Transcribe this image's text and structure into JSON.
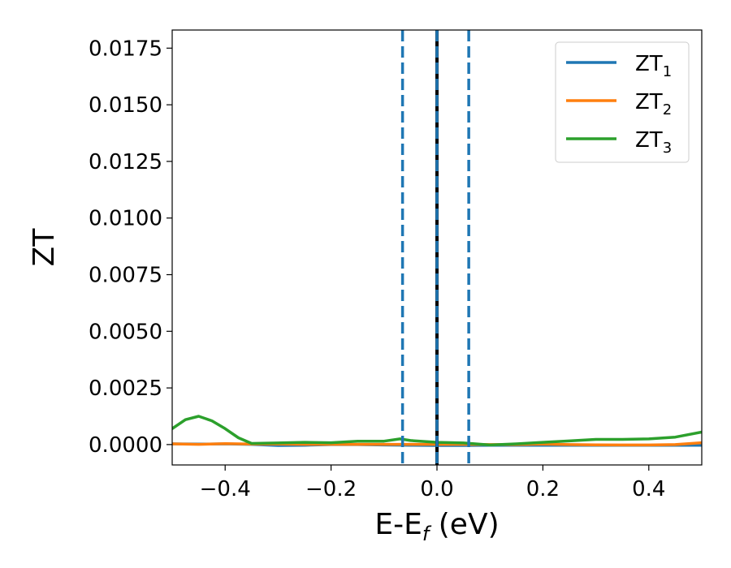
{
  "chart_data": {
    "type": "line",
    "xlabel": "E-E",
    "xlabel_sub": "f",
    "xlabel_unit": " (eV)",
    "ylabel": "ZT",
    "xlim": [
      -0.5,
      0.5
    ],
    "ylim": [
      -0.0009,
      0.0183
    ],
    "xticks": [
      -0.4,
      -0.2,
      0.0,
      0.2,
      0.4
    ],
    "xtick_labels": [
      "−0.4",
      "−0.2",
      "0.0",
      "0.2",
      "0.4"
    ],
    "yticks": [
      0.0,
      0.0025,
      0.005,
      0.0075,
      0.01,
      0.0125,
      0.015,
      0.0175
    ],
    "ytick_labels": [
      "0.0000",
      "0.0025",
      "0.0050",
      "0.0075",
      "0.0100",
      "0.0125",
      "0.0150",
      "0.0175"
    ],
    "grid": false,
    "legend_position": "top-right",
    "series": [
      {
        "name": "ZT",
        "name_sub": "1",
        "color": "#1f77b4",
        "x": [
          -0.5,
          -0.45,
          -0.4,
          -0.35,
          -0.3,
          -0.25,
          -0.2,
          -0.15,
          -0.1,
          -0.05,
          0.0,
          0.05,
          0.1,
          0.15,
          0.2,
          0.25,
          0.3,
          0.35,
          0.4,
          0.45,
          0.5
        ],
        "y": [
          3e-05,
          2e-05,
          3e-05,
          1e-05,
          -4e-05,
          -3e-05,
          0.0,
          0.0,
          -2e-05,
          -3e-05,
          -4e-05,
          -4e-05,
          -3e-05,
          -3e-05,
          -3e-05,
          -3e-05,
          -3e-05,
          -3e-05,
          -3e-05,
          -3e-05,
          -3e-05
        ]
      },
      {
        "name": "ZT",
        "name_sub": "2",
        "color": "#ff7f0e",
        "x": [
          -0.5,
          -0.45,
          -0.4,
          -0.35,
          -0.3,
          -0.25,
          -0.2,
          -0.15,
          -0.1,
          -0.05,
          0.0,
          0.05,
          0.1,
          0.15,
          0.2,
          0.25,
          0.3,
          0.35,
          0.4,
          0.45,
          0.5
        ],
        "y": [
          3e-05,
          1e-05,
          4e-05,
          2e-05,
          2e-05,
          1e-05,
          1e-05,
          1e-05,
          1e-05,
          1e-05,
          1e-05,
          1e-05,
          0.0,
          0.0,
          2e-05,
          0.0,
          -1e-05,
          -2e-05,
          -2e-05,
          0.0,
          8e-05
        ]
      },
      {
        "name": "ZT",
        "name_sub": "3",
        "color": "#2ca02c",
        "x": [
          -0.5,
          -0.475,
          -0.45,
          -0.425,
          -0.4,
          -0.375,
          -0.35,
          -0.3,
          -0.25,
          -0.2,
          -0.15,
          -0.1,
          -0.07,
          -0.05,
          0.0,
          0.05,
          0.1,
          0.15,
          0.2,
          0.25,
          0.3,
          0.35,
          0.4,
          0.45,
          0.5
        ],
        "y": [
          0.0007,
          0.0011,
          0.00125,
          0.00105,
          0.0007,
          0.0003,
          5e-05,
          7e-05,
          0.0001,
          8e-05,
          0.00015,
          0.00015,
          0.00025,
          0.00018,
          0.0001,
          7e-05,
          -2e-05,
          3e-05,
          0.0001,
          0.00016,
          0.00023,
          0.00023,
          0.00025,
          0.00033,
          0.00055
        ]
      }
    ],
    "vlines": [
      {
        "x": -0.065,
        "color": "#1f77b4",
        "style": "dashed"
      },
      {
        "x": 0.0,
        "color": "#000000",
        "style": "solid"
      },
      {
        "x": 0.0,
        "color": "#1f77b4",
        "style": "dashed"
      },
      {
        "x": 0.06,
        "color": "#1f77b4",
        "style": "dashed"
      }
    ]
  }
}
